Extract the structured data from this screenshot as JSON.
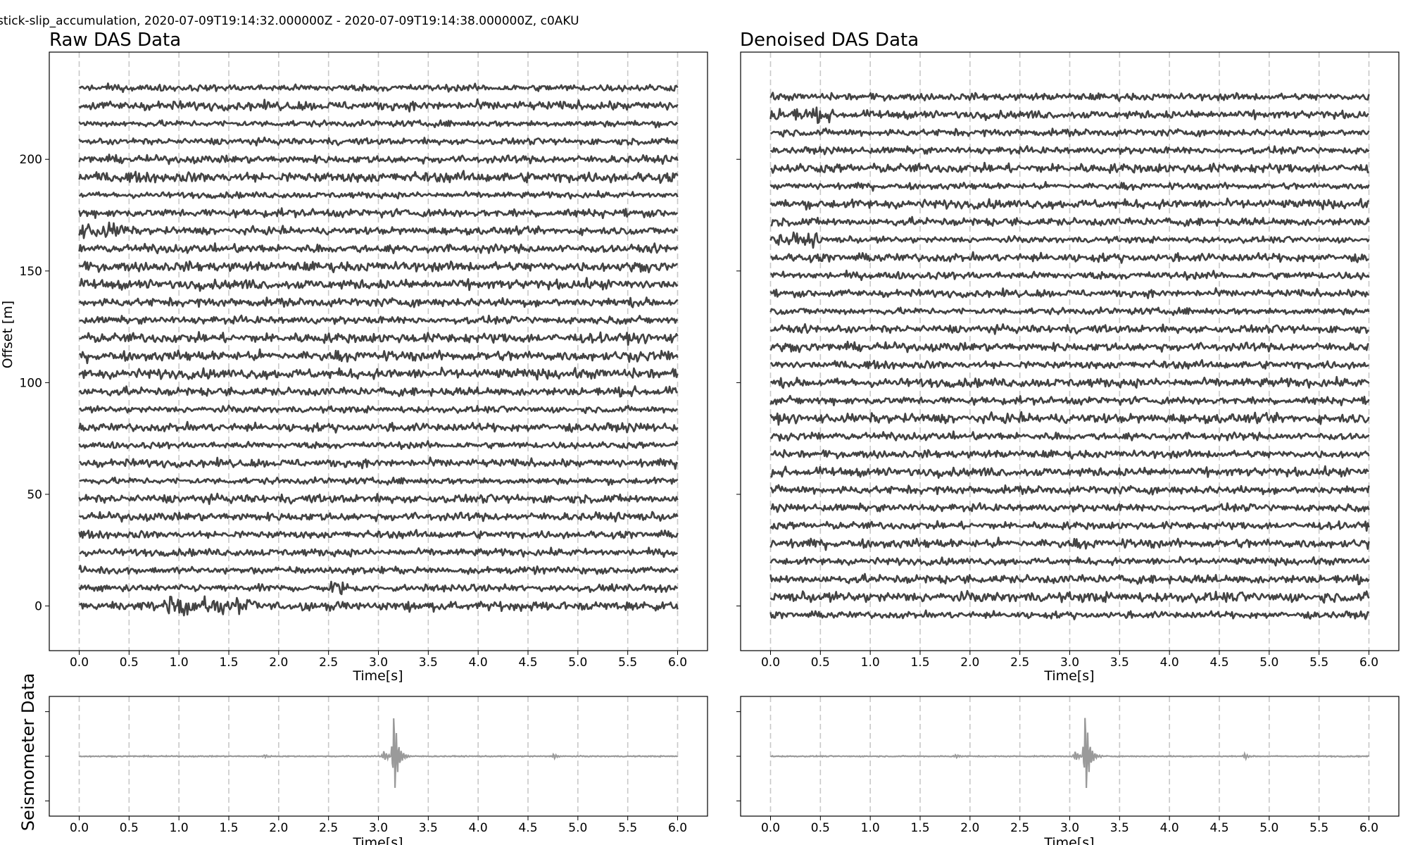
{
  "figure": {
    "suptitle": "stick-slip_accumulation, 2020-07-09T19:14:32.000000Z - 2020-07-09T19:14:38.000000Z, c0AKU",
    "seismometer_ylabel": "Seismometer Data"
  },
  "colors": {
    "das_trace": "#444444",
    "seis_trace": "#9a9a9a",
    "gridline": "#c8c8c8",
    "axes": "#000000"
  },
  "chart_data": [
    {
      "type": "line",
      "panel": "raw-das",
      "title": "Raw DAS Data",
      "xlabel": "Time[s]",
      "ylabel": "Offset [m]",
      "xlim": [
        -0.3,
        6.3
      ],
      "ylim": [
        -20,
        248
      ],
      "xticks": [
        "0.0",
        "0.5",
        "1.0",
        "1.5",
        "2.0",
        "2.5",
        "3.0",
        "3.5",
        "4.0",
        "4.5",
        "5.0",
        "5.5",
        "6.0"
      ],
      "yticks": [
        "0",
        "50",
        "100",
        "150",
        "200"
      ],
      "grid": "vertical dashed",
      "trace_offsets": [
        0,
        8,
        16,
        24,
        32,
        40,
        48,
        56,
        64,
        72,
        80,
        88,
        96,
        104,
        112,
        120,
        128,
        136,
        144,
        152,
        160,
        168,
        176,
        184,
        192,
        200,
        208,
        216,
        224,
        232
      ],
      "time_range": [
        0,
        6
      ]
    },
    {
      "type": "line",
      "panel": "denoised-das",
      "title": "Denoised DAS Data",
      "xlabel": "Time[s]",
      "ylabel": "",
      "xlim": [
        -0.3,
        6.3
      ],
      "ylim": [
        -20,
        248
      ],
      "xticks": [
        "0.0",
        "0.5",
        "1.0",
        "1.5",
        "2.0",
        "2.5",
        "3.0",
        "3.5",
        "4.0",
        "4.5",
        "5.0",
        "5.5",
        "6.0"
      ],
      "yticks": [],
      "grid": "vertical dashed",
      "trace_offsets": [
        -4,
        4,
        12,
        20,
        28,
        36,
        44,
        52,
        60,
        68,
        76,
        84,
        92,
        100,
        108,
        116,
        124,
        132,
        140,
        148,
        156,
        164,
        172,
        180,
        188,
        196,
        204,
        212,
        220,
        228
      ],
      "time_range": [
        0,
        6
      ]
    },
    {
      "type": "line",
      "panel": "raw-seismometer",
      "title": "",
      "xlabel": "Time[s]",
      "ylabel": "Seismometer Data",
      "xlim": [
        -0.3,
        6.3
      ],
      "ylim": [
        -1.1,
        1.1
      ],
      "xticks": [
        "0.0",
        "0.5",
        "1.0",
        "1.5",
        "2.0",
        "2.5",
        "3.0",
        "3.5",
        "4.0",
        "4.5",
        "5.0",
        "5.5",
        "6.0"
      ],
      "grid": "vertical dashed",
      "events": [
        {
          "t": 3.15,
          "amplitude": 1.0
        },
        {
          "t": 3.05,
          "amplitude": 0.12
        },
        {
          "t": 1.85,
          "amplitude": 0.04
        },
        {
          "t": 4.75,
          "amplitude": 0.05
        }
      ]
    },
    {
      "type": "line",
      "panel": "denoised-seismometer",
      "title": "",
      "xlabel": "Time[s]",
      "ylabel": "",
      "xlim": [
        -0.3,
        6.3
      ],
      "ylim": [
        -1.1,
        1.1
      ],
      "xticks": [
        "0.0",
        "0.5",
        "1.0",
        "1.5",
        "2.0",
        "2.5",
        "3.0",
        "3.5",
        "4.0",
        "4.5",
        "5.0",
        "5.5",
        "6.0"
      ],
      "grid": "vertical dashed",
      "events": [
        {
          "t": 3.15,
          "amplitude": 1.0
        },
        {
          "t": 3.05,
          "amplitude": 0.12
        },
        {
          "t": 1.85,
          "amplitude": 0.04
        },
        {
          "t": 4.75,
          "amplitude": 0.05
        }
      ]
    }
  ]
}
